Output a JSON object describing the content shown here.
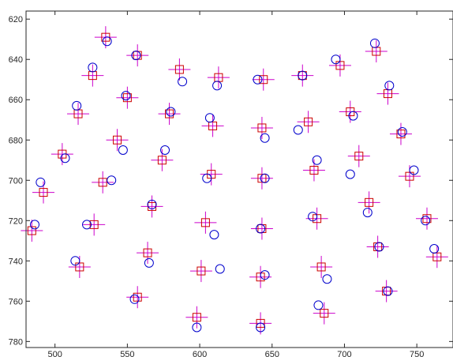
{
  "chart_data": {
    "type": "scatter",
    "title": "",
    "xlabel": "",
    "ylabel": "",
    "xlim": [
      480,
      775
    ],
    "ylim": [
      783,
      616
    ],
    "y_reversed": true,
    "grid": false,
    "box": true,
    "x_ticks": [
      500,
      550,
      600,
      650,
      700,
      750
    ],
    "y_ticks": [
      620,
      640,
      660,
      680,
      700,
      720,
      740,
      760,
      780
    ],
    "colors": {
      "square": "#cc0000",
      "cross": "#cc00cc",
      "circle": "#0000cc",
      "axis": "#262626"
    },
    "series": [
      {
        "marker": "square-with-cross",
        "points": [
          [
            535,
            629
          ],
          [
            557,
            638
          ],
          [
            586,
            645
          ],
          [
            613,
            649
          ],
          [
            644,
            650
          ],
          [
            671,
            648
          ],
          [
            697,
            643
          ],
          [
            722,
            636
          ],
          [
            526,
            648
          ],
          [
            550,
            659
          ],
          [
            579,
            667
          ],
          [
            609,
            673
          ],
          [
            643,
            674
          ],
          [
            675,
            671
          ],
          [
            704,
            666
          ],
          [
            730,
            657
          ],
          [
            516,
            667
          ],
          [
            543,
            680
          ],
          [
            574,
            690
          ],
          [
            608,
            697
          ],
          [
            643,
            699
          ],
          [
            679,
            695
          ],
          [
            710,
            688
          ],
          [
            739,
            677
          ],
          [
            505,
            687
          ],
          [
            533,
            701
          ],
          [
            567,
            713
          ],
          [
            604,
            721
          ],
          [
            643,
            724
          ],
          [
            681,
            719
          ],
          [
            717,
            711
          ],
          [
            745,
            698
          ],
          [
            492,
            706
          ],
          [
            527,
            722
          ],
          [
            564,
            736
          ],
          [
            601,
            745
          ],
          [
            642,
            748
          ],
          [
            684,
            743
          ],
          [
            723,
            733
          ],
          [
            757,
            719
          ],
          [
            484,
            725
          ],
          [
            517,
            743
          ],
          [
            557,
            758
          ],
          [
            598,
            768
          ],
          [
            642,
            771
          ],
          [
            686,
            766
          ],
          [
            729,
            755
          ],
          [
            764,
            738
          ]
        ]
      },
      {
        "marker": "circle",
        "points": [
          [
            536,
            631
          ],
          [
            556,
            638
          ],
          [
            588,
            651
          ],
          [
            612,
            653
          ],
          [
            640,
            650
          ],
          [
            671,
            648
          ],
          [
            694,
            640
          ],
          [
            721,
            632
          ],
          [
            526,
            644
          ],
          [
            549,
            658
          ],
          [
            580,
            666
          ],
          [
            607,
            669
          ],
          [
            645,
            679
          ],
          [
            668,
            675
          ],
          [
            706,
            668
          ],
          [
            731,
            653
          ],
          [
            515,
            663
          ],
          [
            547,
            685
          ],
          [
            576,
            685
          ],
          [
            605,
            699
          ],
          [
            645,
            699
          ],
          [
            681,
            690
          ],
          [
            704,
            697
          ],
          [
            740,
            676
          ],
          [
            507,
            689
          ],
          [
            539,
            700
          ],
          [
            567,
            712
          ],
          [
            610,
            727
          ],
          [
            642,
            724
          ],
          [
            678,
            718
          ],
          [
            716,
            716
          ],
          [
            748,
            695
          ],
          [
            490,
            701
          ],
          [
            522,
            722
          ],
          [
            565,
            741
          ],
          [
            614,
            744
          ],
          [
            645,
            747
          ],
          [
            688,
            749
          ],
          [
            724,
            733
          ],
          [
            756,
            720
          ],
          [
            486,
            722
          ],
          [
            514,
            740
          ],
          [
            555,
            759
          ],
          [
            598,
            773
          ],
          [
            642,
            773
          ],
          [
            682,
            762
          ],
          [
            730,
            755
          ],
          [
            762,
            734
          ]
        ]
      }
    ]
  }
}
